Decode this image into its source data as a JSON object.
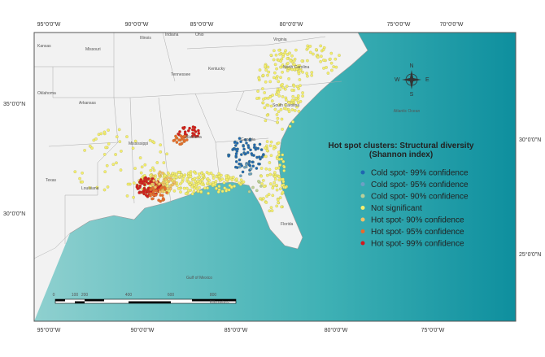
{
  "map": {
    "top_labels": [
      "95°0'0\"W",
      "90°0'0\"W",
      "85°0'0\"W",
      "80°0'0\"W",
      "75°0'0\"W",
      "70°0'0\"W"
    ],
    "bottom_labels": [
      "95°0'0\"W",
      "90°0'0\"W",
      "85°0'0\"W",
      "80°0'0\"W",
      "75°0'0\"W"
    ],
    "left_labels": [
      "35°0'0\"N",
      "30°0'0\"N"
    ],
    "right_labels": [
      "30°0'0\"N",
      "25°0'0\"N"
    ],
    "states": [
      "Kansas",
      "Missouri",
      "Illinois",
      "Indiana",
      "Ohio",
      "Kentucky",
      "Virginia",
      "Oklahoma",
      "Arkansas",
      "Tennessee",
      "North Carolina",
      "South Carolina",
      "Mississippi",
      "Alabama",
      "Georgia",
      "Texas",
      "Louisiana",
      "Florida"
    ],
    "oceans": [
      "Atlantic Ocean",
      "Gulf of Mexico"
    ],
    "compass": [
      "N",
      "S",
      "E",
      "W"
    ],
    "scale": {
      "ticks": [
        "0",
        "100",
        "200",
        "400",
        "600",
        "800"
      ],
      "unit": "Kilometers"
    },
    "legend": {
      "title": "Hot spot clusters: Structural diversity (Shannon index)",
      "items": [
        {
          "label": "Cold spot- 99% confidence",
          "color": "#1f66b0"
        },
        {
          "label": "Cold spot- 95% confidence",
          "color": "#6d9fc4"
        },
        {
          "label": "Cold spot- 90% confidence",
          "color": "#b9cf9a"
        },
        {
          "label": "Not significant",
          "color": "#f4ee6e"
        },
        {
          "label": "Hot spot- 90% confidence",
          "color": "#f4c067"
        },
        {
          "label": "Hot spot- 95% confidence",
          "color": "#e86a2c"
        },
        {
          "label": "Hot spot- 99% confidence",
          "color": "#d3171c"
        }
      ]
    }
  }
}
